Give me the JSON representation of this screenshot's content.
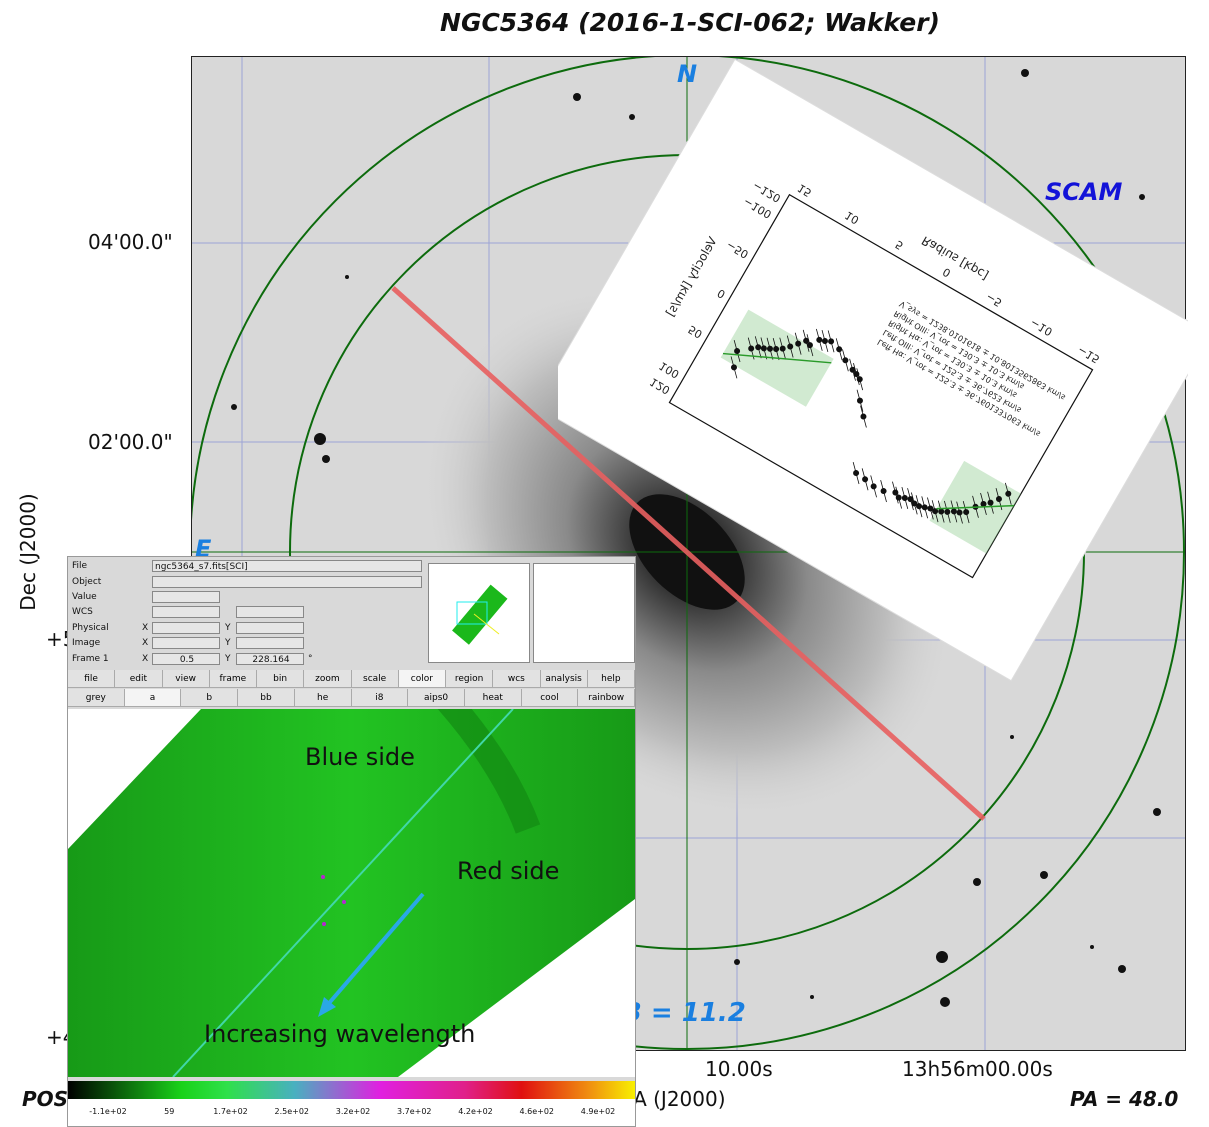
{
  "title": "NGC5364 (2016-1-SCI-062; Wakker)",
  "sky": {
    "compass_n": "N",
    "compass_e": "E",
    "scam_label": "SCAM",
    "mag_label": "B = 11.2",
    "dec_ticks": [
      "04'00.0\"",
      "02'00.0\"",
      "+5",
      "+4"
    ],
    "ra_ticks": [
      "10.00s",
      "13h56m00.00s"
    ],
    "ylabel": "Dec (J2000)",
    "xlabel": "RA (J2000)",
    "survey_label": "POS",
    "pa_label": "PA = 48.0",
    "colors": {
      "circle": "#0d6b0d",
      "slit": "#e86060",
      "grid": "#6d7bd6",
      "label": "#1a7fe0",
      "scam": "#1313d8"
    }
  },
  "inset": {
    "chart_data": {
      "type": "scatter",
      "xlabel": "Radius [kpc]",
      "ylabel": "Velocity [km/s]",
      "x_ticks": [
        "15",
        "10",
        "5",
        "0",
        "−5",
        "−10",
        "−15"
      ],
      "y_ticks": [
        "120",
        "100",
        "50",
        "0",
        "−50",
        "−100",
        "−120"
      ],
      "legend": [
        "Left Hα: V_rot = 125.3 ± 36.7601337063 km/s",
        "Left OIII: V_rot = 125.3 ± 36.7623 km/s",
        "Right Hα: V_rot = 130.3 ± 10.3 km/s",
        "Right OIII: V_rot = 130.3 ± 10.3 km/s",
        "V_sys = 1238.0101618 ± 10.8013562863 km/s"
      ],
      "series": [
        {
          "x": [
            13,
            12.5,
            12,
            11.5,
            11,
            10.5,
            10,
            9.5,
            9,
            8.5,
            8,
            7.5,
            7,
            6.5,
            6,
            5,
            4,
            3,
            2.5,
            2,
            1,
            0
          ],
          "y": [
            45,
            62,
            35,
            30,
            28,
            25,
            22,
            18,
            12,
            5,
            -2,
            0,
            -10,
            -12,
            -15,
            -12,
            -5,
            0,
            2,
            5,
            25,
            38
          ]
        },
        {
          "x": [
            -2,
            -3,
            -4,
            -5,
            -6,
            -6.5,
            -7,
            -7.5,
            -8,
            -8.5,
            -9,
            -9.5,
            -10,
            -10.5,
            -11,
            -11.5,
            -12,
            -12.5,
            -13,
            -13.5,
            -14,
            -14.5,
            -15
          ],
          "y": [
            95,
            96,
            98,
            97,
            92,
            95,
            92,
            90,
            92,
            92,
            90,
            88,
            88,
            85,
            82,
            78,
            76,
            72,
            62,
            55,
            50,
            42,
            32
          ]
        }
      ]
    }
  },
  "ds9": {
    "info": {
      "file_label": "File",
      "file_value": "ngc5364_s7.fits[SCI]",
      "object_label": "Object",
      "value_label": "Value",
      "wcs_label": "WCS",
      "physical_label": "Physical",
      "image_label": "Image",
      "frame_label": "Frame 1",
      "x_label": "X",
      "y_label": "Y",
      "frame_x": "0.5",
      "frame_y": "228.164",
      "deg": "°"
    },
    "menu": [
      "file",
      "edit",
      "view",
      "frame",
      "bin",
      "zoom",
      "scale",
      "color",
      "region",
      "wcs",
      "analysis",
      "help"
    ],
    "colormaps": [
      "grey",
      "a",
      "b",
      "bb",
      "he",
      "i8",
      "aips0",
      "heat",
      "cool",
      "rainbow"
    ],
    "colorbar_ticks": [
      "-1.1e+02",
      "59",
      "1.7e+02",
      "2.5e+02",
      "3.2e+02",
      "3.7e+02",
      "4.2e+02",
      "4.6e+02",
      "4.9e+02"
    ],
    "annotations": {
      "blue": "Blue side",
      "red": "Red side",
      "wavelength": "Increasing wavelength"
    }
  }
}
